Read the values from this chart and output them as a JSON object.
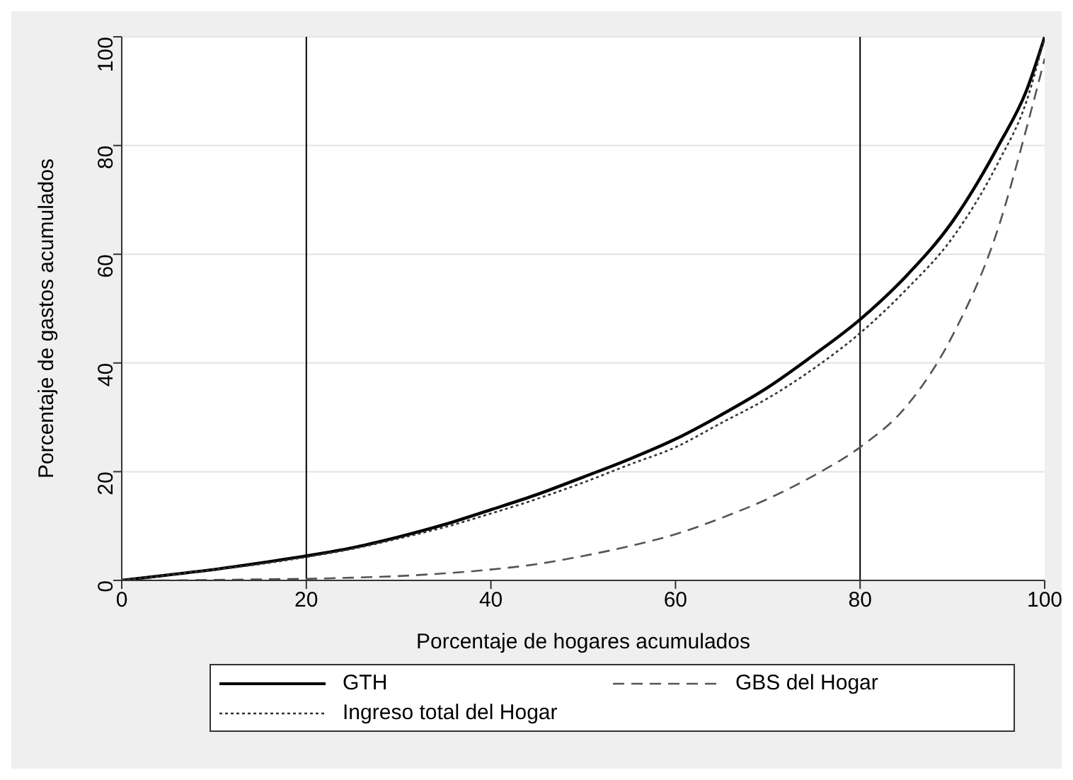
{
  "chart_data": {
    "type": "line",
    "xlabel": "Porcentaje de hogares acumulados",
    "ylabel": "Porcentaje de gastos acumulados",
    "x": [
      0,
      5,
      10,
      15,
      20,
      25,
      30,
      35,
      40,
      45,
      50,
      55,
      60,
      65,
      70,
      75,
      80,
      85,
      90,
      95,
      98,
      100
    ],
    "series": [
      {
        "name": "GTH",
        "color": "#000000",
        "line_style": "solid",
        "values": [
          0,
          1,
          2,
          3.2,
          4.5,
          6,
          8,
          10.3,
          13,
          15.8,
          19,
          22.3,
          26,
          30.5,
          35.5,
          41.5,
          48,
          56,
          66,
          80,
          90,
          100
        ]
      },
      {
        "name": "GBS del Hogar",
        "color": "#555555",
        "line_style": "dashed",
        "values": [
          0,
          0,
          0.1,
          0.2,
          0.3,
          0.5,
          0.8,
          1.3,
          2,
          3,
          4.5,
          6.3,
          8.5,
          11.5,
          15,
          19.3,
          24.5,
          32,
          45,
          65,
          83,
          96
        ]
      },
      {
        "name": "Ingreso total del Hogar",
        "color": "#333333",
        "line_style": "dotted",
        "values": [
          0,
          1,
          2,
          3,
          4.3,
          5.8,
          7.7,
          9.8,
          12.3,
          15,
          18,
          21.3,
          24.5,
          29,
          33.5,
          39,
          45.5,
          53.5,
          63,
          77,
          88,
          100
        ]
      }
    ],
    "xlim": [
      0,
      100
    ],
    "xticks": [
      0,
      20,
      40,
      60,
      80,
      100
    ],
    "ylim": [
      0,
      100
    ],
    "yticks": [
      0,
      20,
      40,
      60,
      80,
      100
    ],
    "grid": "y",
    "legend": "bottom",
    "marker": "none",
    "ref_lines": [
      {
        "axis": "x",
        "value": 20,
        "color": "#000000"
      },
      {
        "axis": "x",
        "value": 80,
        "color": "#000000"
      }
    ]
  }
}
